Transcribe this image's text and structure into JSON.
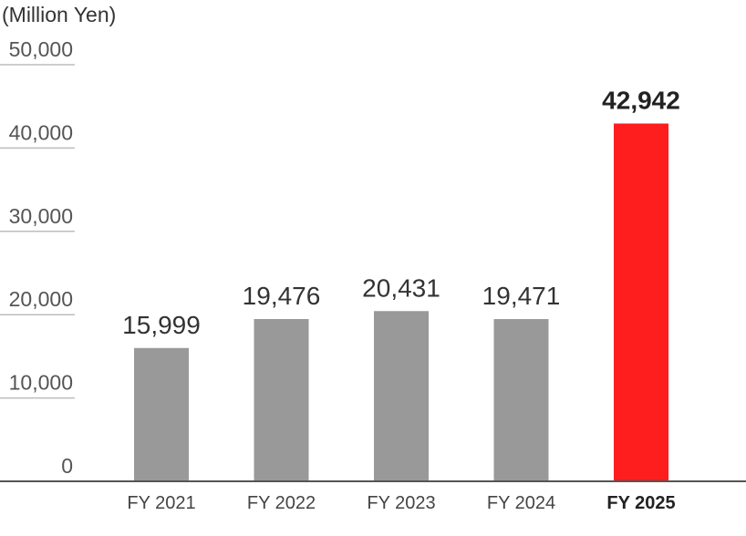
{
  "chart_data": {
    "type": "bar",
    "unit_label": "(Million Yen)",
    "categories": [
      "FY 2021",
      "FY 2022",
      "FY 2023",
      "FY 2024",
      "FY 2025"
    ],
    "values": [
      15999,
      19476,
      20431,
      19471,
      42942
    ],
    "value_labels": [
      "15,999",
      "19,476",
      "20,431",
      "19,471",
      "42,942"
    ],
    "highlight_index": 4,
    "ylim": [
      0,
      50000
    ],
    "y_ticks": [
      0,
      10000,
      20000,
      30000,
      40000,
      50000
    ],
    "y_tick_labels": [
      "0",
      "10,000",
      "20,000",
      "30,000",
      "40,000",
      "50,000"
    ],
    "grid": true,
    "colors": {
      "bar": "#999999",
      "highlight_bar": "#ff1e1e"
    }
  }
}
